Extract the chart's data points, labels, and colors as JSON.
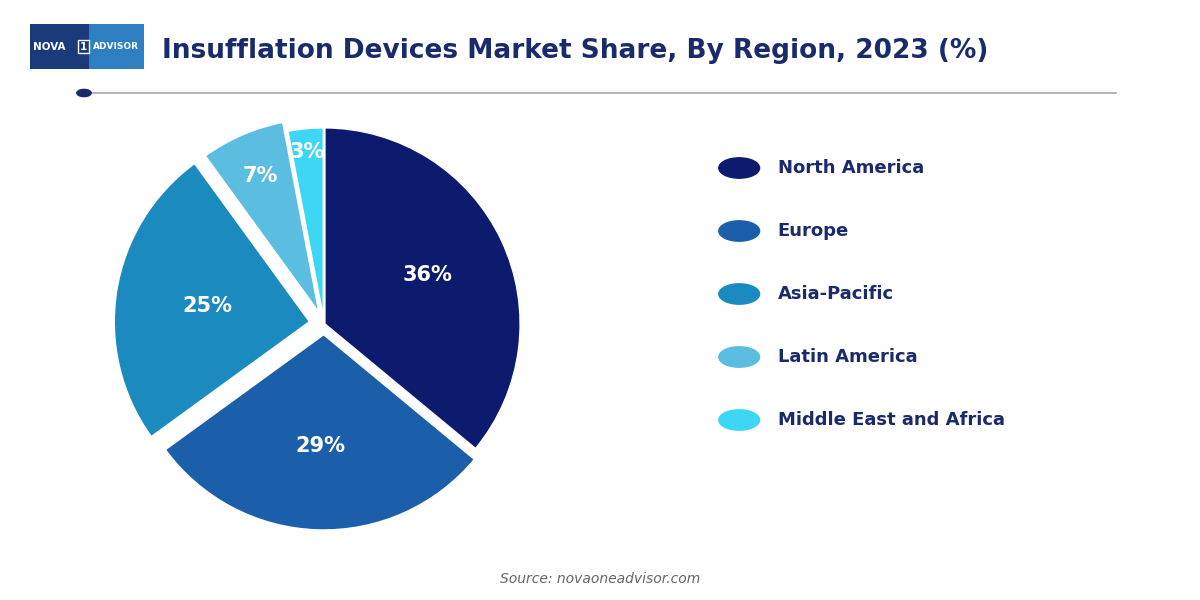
{
  "title": "Insufflation Devices Market Share, By Region, 2023 (%)",
  "slices": [
    36,
    29,
    25,
    7,
    3
  ],
  "labels": [
    "North America",
    "Europe",
    "Asia-Pacific",
    "Latin America",
    "Middle East and Africa"
  ],
  "colors": [
    "#0d1b6e",
    "#1b5faa",
    "#1a8abf",
    "#5bbde0",
    "#3dd6f5"
  ],
  "pct_labels": [
    "36%",
    "29%",
    "25%",
    "7%",
    "3%"
  ],
  "explode": [
    0,
    0.05,
    0.07,
    0.05,
    0.0
  ],
  "startangle": 90,
  "source_text": "Source: novaoneadvisor.com",
  "bg_color": "#ffffff",
  "text_color": "#1a2b6b",
  "legend_fontsize": 13,
  "pct_fontsize": 15,
  "pct_radii": [
    0.58,
    0.62,
    0.6,
    0.82,
    0.88
  ]
}
